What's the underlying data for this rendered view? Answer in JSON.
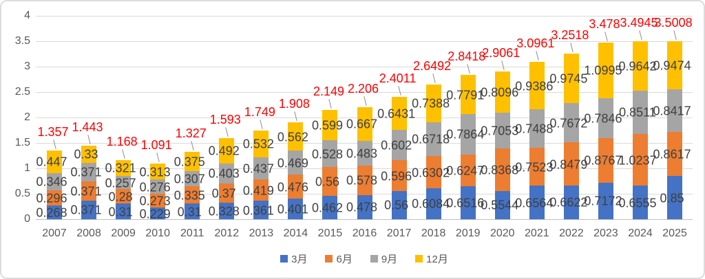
{
  "chart_data": {
    "type": "bar",
    "stacked": true,
    "title": "",
    "xlabel": "",
    "ylabel": "",
    "grid": true,
    "legend_position": "bottom",
    "ylim": [
      0,
      4
    ],
    "y_ticks": [
      0,
      0.5,
      1,
      1.5,
      2,
      2.5,
      3,
      3.5,
      4
    ],
    "categories": [
      "2007",
      "2008",
      "2009",
      "2010",
      "2011",
      "2012",
      "2013",
      "2014",
      "2015",
      "2016",
      "2017",
      "2018",
      "2019",
      "2020",
      "2021",
      "2022",
      "2023",
      "2024",
      "2025"
    ],
    "series": [
      {
        "name": "3月",
        "color": "#4472C4",
        "values": [
          0.268,
          0.371,
          0.31,
          0.229,
          0.31,
          0.328,
          0.361,
          0.401,
          0.462,
          0.478,
          0.56,
          0.6084,
          0.6516,
          0.5544,
          0.6564,
          0.6622,
          0.7172,
          0.6555,
          0.85
        ]
      },
      {
        "name": "6月",
        "color": "#ED7D31",
        "values": [
          0.296,
          0.371,
          0.28,
          0.273,
          0.335,
          0.37,
          0.419,
          0.476,
          0.56,
          0.578,
          0.596,
          0.6302,
          0.6247,
          0.8368,
          0.7523,
          0.8479,
          0.8767,
          1.0237,
          0.8617
        ]
      },
      {
        "name": "9月",
        "color": "#A5A5A5",
        "values": [
          0.346,
          0.371,
          0.257,
          0.276,
          0.307,
          0.403,
          0.437,
          0.469,
          0.528,
          0.483,
          0.602,
          0.6718,
          0.7864,
          0.7053,
          0.7488,
          0.7672,
          0.7846,
          0.8511,
          0.8417
        ]
      },
      {
        "name": "12月",
        "color": "#FFC000",
        "values": [
          0.447,
          0.33,
          0.321,
          0.313,
          0.375,
          0.492,
          0.532,
          0.562,
          0.599,
          0.667,
          0.6431,
          0.7388,
          0.7791,
          0.8096,
          0.9386,
          0.9745,
          1.0995,
          0.9642,
          0.9474
        ]
      }
    ],
    "totals": [
      1.357,
      1.443,
      1.168,
      1.091,
      1.327,
      1.593,
      1.749,
      1.908,
      2.149,
      2.206,
      2.4011,
      2.6492,
      2.8418,
      2.9061,
      3.0961,
      3.2518,
      3.478,
      3.4945,
      3.5008
    ],
    "total_label_color": "#FF0000",
    "segment_label_color": "#404040",
    "axis_label_color": "#595959",
    "gridline_color": "#D9D9D9"
  }
}
